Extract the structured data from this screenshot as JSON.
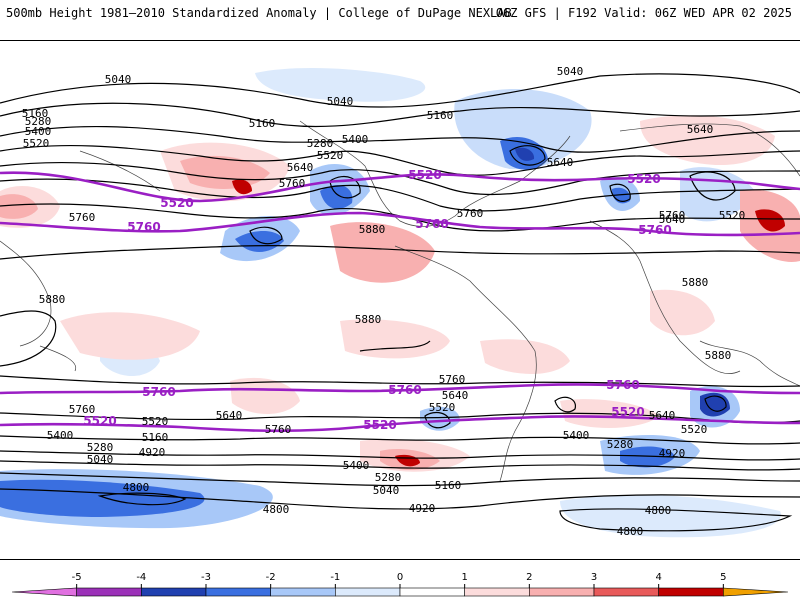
{
  "header": {
    "title": "500mb Height 1981–2010 Standardized Anomaly | College of DuPage NEXLAB",
    "run_info": "06Z GFS | F192 Valid: 06Z WED APR 02 2025"
  },
  "contour_labels": {
    "north": [
      "5040",
      "5040",
      "5040",
      "5160",
      "5160",
      "5160",
      "5280",
      "5280",
      "5400",
      "5400",
      "5520",
      "5520",
      "5640",
      "5640",
      "5640",
      "5760",
      "5760",
      "5760",
      "5640",
      "5520"
    ],
    "tropics": [
      "5880",
      "5880",
      "5880",
      "5880",
      "5880",
      "5760"
    ],
    "south": [
      "5760",
      "5760",
      "5640",
      "5640",
      "5520",
      "5520",
      "5400",
      "5400",
      "5280",
      "5280",
      "5160",
      "5160",
      "5040",
      "5040",
      "4920",
      "4920",
      "4920",
      "4800",
      "4800",
      "4800",
      "4800",
      "5760",
      "5640",
      "5520",
      "5400",
      "5280",
      "5160"
    ]
  },
  "climo_labels": {
    "north": [
      "5520",
      "5520",
      "5520",
      "5760",
      "5760",
      "5760"
    ],
    "south": [
      "5760",
      "5760",
      "5760",
      "5520",
      "5520",
      "5520"
    ]
  },
  "colorbar": {
    "ticks": [
      "-5",
      "-4",
      "-3",
      "-2",
      "-1",
      "0",
      "1",
      "2",
      "3",
      "4",
      "5"
    ],
    "colors": [
      "#e070e0",
      "#9b30b8",
      "#2040b0",
      "#3a6fe0",
      "#a8c8f8",
      "#dceafc",
      "#ffffff",
      "#fcdcdc",
      "#f8b0b0",
      "#e85a5a",
      "#c00000",
      "#f0a000"
    ]
  },
  "colors": {
    "climo_line": "#9a1fc4",
    "contour": "#000000",
    "coast": "#444444"
  }
}
